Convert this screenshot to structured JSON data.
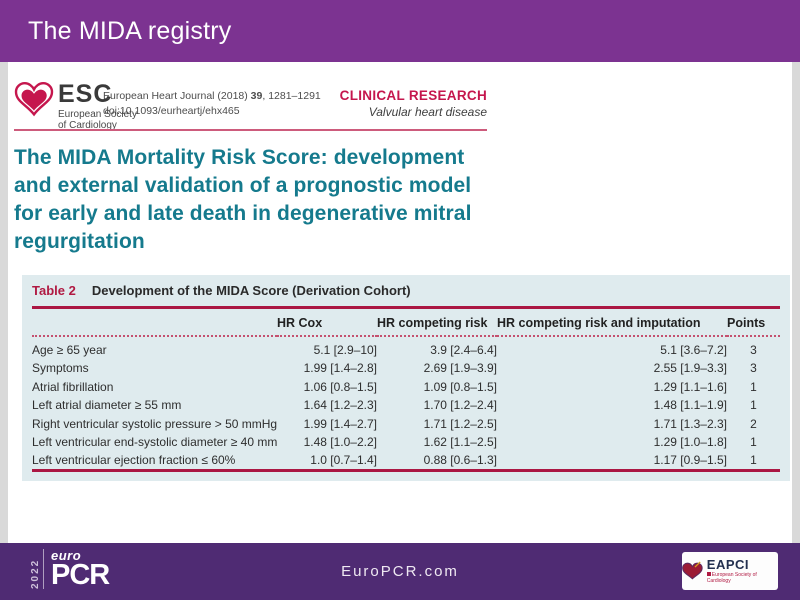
{
  "slide": {
    "title": "The MIDA registry"
  },
  "article": {
    "esc": {
      "acronym": "ESC",
      "name_line1": "European Society",
      "name_line2": "of Cardiology"
    },
    "ref_pre": "European Heart Journal (2018) ",
    "ref_vol": "39",
    "ref_post": ", 1281–1291",
    "doi": "doi:10.1093/eurheartj/ehx465",
    "category": "CLINICAL RESEARCH",
    "subcategory": "Valvular heart disease",
    "title": "The MIDA Mortality Risk Score: development and external validation of a prognostic model for early and late death in degenerative mitral regurgitation"
  },
  "table": {
    "caption_label": "Table 2",
    "caption_text": "Development of the MIDA Score (Derivation Cohort)",
    "columns": [
      "",
      "HR Cox",
      "HR competing risk",
      "HR competing risk and imputation",
      "Points"
    ],
    "rows": [
      {
        "label": "Age ≥ 65 year",
        "hr_cox": "5.1 [2.9–10]",
        "hr_competing": "3.9 [2.4–6.4]",
        "hr_imputation": "5.1 [3.6–7.2]",
        "points": "3"
      },
      {
        "label": "Symptoms",
        "hr_cox": "1.99 [1.4–2.8]",
        "hr_competing": "2.69 [1.9–3.9]",
        "hr_imputation": "2.55 [1.9–3.3]",
        "points": "3"
      },
      {
        "label": "Atrial fibrillation",
        "hr_cox": "1.06 [0.8–1.5]",
        "hr_competing": "1.09 [0.8–1.5]",
        "hr_imputation": "1.29 [1.1–1.6]",
        "points": "1"
      },
      {
        "label": "Left atrial diameter ≥ 55 mm",
        "hr_cox": "1.64 [1.2–2.3]",
        "hr_competing": "1.70 [1.2–2.4]",
        "hr_imputation": "1.48 [1.1–1.9]",
        "points": "1"
      },
      {
        "label": "Right ventricular systolic pressure > 50 mmHg",
        "hr_cox": "1.99 [1.4–2.7]",
        "hr_competing": "1.71 [1.2–2.5]",
        "hr_imputation": "1.71 [1.3–2.3]",
        "points": "2"
      },
      {
        "label": "Left ventricular end-systolic diameter ≥ 40 mm",
        "hr_cox": "1.48 [1.0–2.2]",
        "hr_competing": "1.62 [1.1–2.5]",
        "hr_imputation": "1.29 [1.0–1.8]",
        "points": "1"
      },
      {
        "label": "Left ventricular ejection fraction ≤ 60%",
        "hr_cox": "1.0 [0.7–1.4]",
        "hr_competing": "0.88 [0.6–1.3]",
        "hr_imputation": "1.17 [0.9–1.5]",
        "points": "1"
      }
    ]
  },
  "footer": {
    "year": "2022",
    "euro": "euro",
    "pcr": "PCR",
    "website": "EuroPCR.com",
    "eapci": "EAPCI",
    "eapci_sub": "European Society of Cardiology"
  },
  "colors": {
    "header_purple": "#7c3391",
    "footer_purple": "#4f2b73",
    "accent_red": "#b01942",
    "title_teal": "#157a8d",
    "table_background": "#dfebee"
  }
}
